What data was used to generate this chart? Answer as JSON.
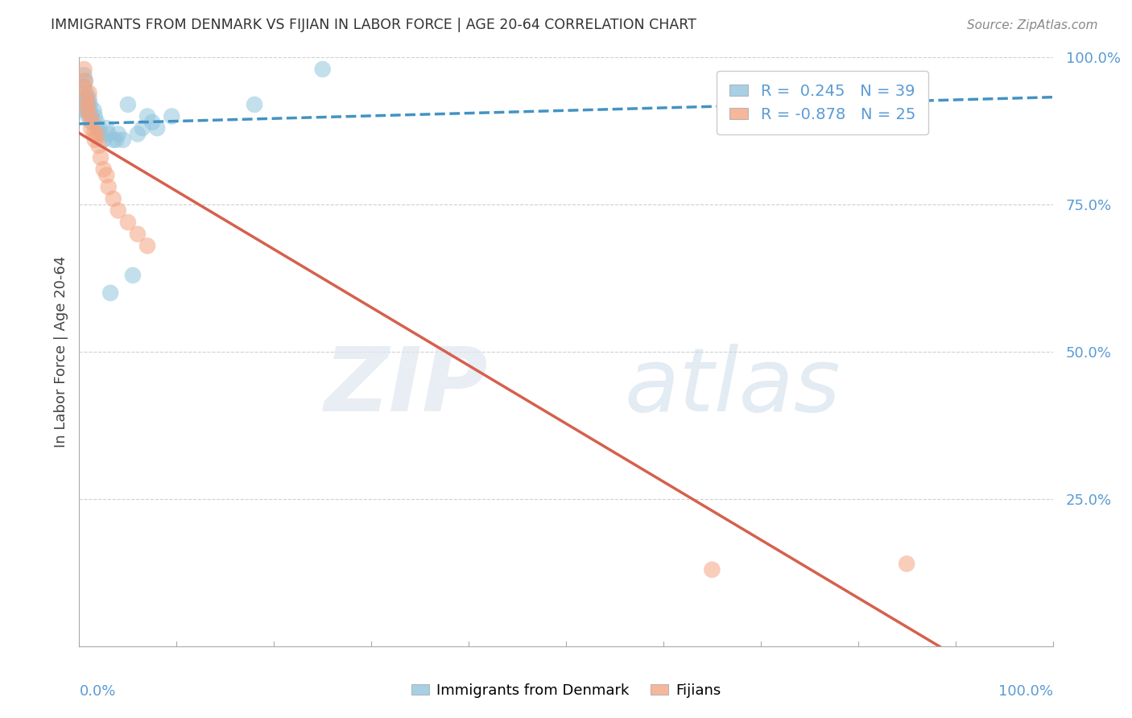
{
  "title": "IMMIGRANTS FROM DENMARK VS FIJIAN IN LABOR FORCE | AGE 20-64 CORRELATION CHART",
  "source": "Source: ZipAtlas.com",
  "ylabel": "In Labor Force | Age 20-64",
  "denmark_R": 0.245,
  "denmark_N": 39,
  "fijian_R": -0.878,
  "fijian_N": 25,
  "denmark_color": "#92c5de",
  "fijian_color": "#f4a582",
  "denmark_line_color": "#4393c3",
  "fijian_line_color": "#d6604d",
  "denmark_line_style": "--",
  "fijian_line_style": "-",
  "tick_color": "#5b9bd5",
  "grid_color": "#d0d0d0",
  "background_color": "#ffffff",
  "denmark_x": [
    0.005,
    0.005,
    0.006,
    0.006,
    0.006,
    0.007,
    0.007,
    0.008,
    0.008,
    0.009,
    0.009,
    0.01,
    0.01,
    0.011,
    0.012,
    0.013,
    0.015,
    0.016,
    0.018,
    0.02,
    0.022,
    0.025,
    0.028,
    0.03,
    0.032,
    0.035,
    0.038,
    0.04,
    0.045,
    0.05,
    0.055,
    0.06,
    0.065,
    0.07,
    0.075,
    0.08,
    0.095,
    0.18,
    0.25
  ],
  "denmark_y": [
    0.97,
    0.95,
    0.96,
    0.93,
    0.91,
    0.94,
    0.92,
    0.93,
    0.91,
    0.92,
    0.9,
    0.93,
    0.91,
    0.92,
    0.9,
    0.89,
    0.91,
    0.9,
    0.89,
    0.88,
    0.87,
    0.86,
    0.88,
    0.87,
    0.6,
    0.86,
    0.86,
    0.87,
    0.86,
    0.92,
    0.63,
    0.87,
    0.88,
    0.9,
    0.89,
    0.88,
    0.9,
    0.92,
    0.98
  ],
  "fijian_x": [
    0.004,
    0.005,
    0.006,
    0.007,
    0.008,
    0.009,
    0.01,
    0.011,
    0.012,
    0.013,
    0.015,
    0.016,
    0.018,
    0.02,
    0.022,
    0.025,
    0.028,
    0.03,
    0.035,
    0.04,
    0.05,
    0.06,
    0.07,
    0.65,
    0.85
  ],
  "fijian_y": [
    0.95,
    0.98,
    0.96,
    0.93,
    0.91,
    0.92,
    0.94,
    0.9,
    0.88,
    0.89,
    0.87,
    0.86,
    0.87,
    0.85,
    0.83,
    0.81,
    0.8,
    0.78,
    0.76,
    0.74,
    0.72,
    0.7,
    0.68,
    0.13,
    0.14
  ],
  "xlim": [
    0.0,
    1.0
  ],
  "ylim": [
    0.0,
    1.0
  ],
  "yticks": [
    0.25,
    0.5,
    0.75,
    1.0
  ],
  "ytick_labels": [
    "25.0%",
    "50.0%",
    "75.0%",
    "100.0%"
  ]
}
